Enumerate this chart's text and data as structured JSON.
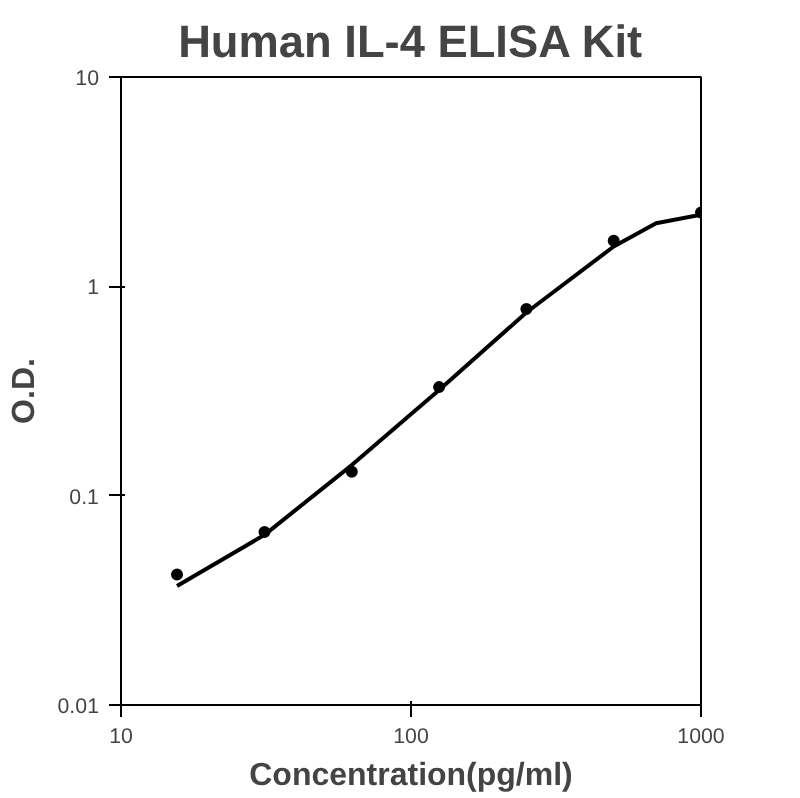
{
  "chart_data": {
    "type": "scatter",
    "title": "Human IL-4 ELISA Kit",
    "xlabel": "Concentration(pg/ml)",
    "ylabel": "O.D.",
    "log": "xy",
    "grid": false,
    "xlim": [
      10,
      1000
    ],
    "ylim": [
      0.01,
      10
    ],
    "xticks": [
      10,
      100,
      1000
    ],
    "yticks": [
      0.01,
      0.1,
      1,
      10
    ],
    "series": [
      {
        "marker": "circle",
        "color": "#000000",
        "x": [
          15.6,
          31.25,
          62.5,
          125,
          250,
          500,
          1000
        ],
        "values": [
          0.042,
          0.067,
          0.13,
          0.33,
          0.78,
          1.65,
          2.25
        ]
      },
      {
        "type": "line",
        "marker": "none",
        "line_style": "solid",
        "color": "#000000",
        "x": [
          15.6,
          31.25,
          62.5,
          125,
          250,
          500,
          700,
          1000
        ],
        "values": [
          0.037,
          0.065,
          0.14,
          0.32,
          0.75,
          1.55,
          2.0,
          2.2
        ]
      }
    ]
  }
}
